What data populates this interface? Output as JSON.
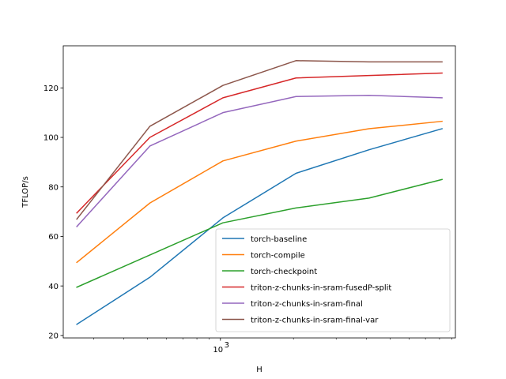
{
  "chart_data": {
    "type": "line",
    "title": "",
    "xlabel": "H",
    "ylabel": "TFLOP/s",
    "xscale": "log",
    "x": [
      256,
      512,
      1024,
      2048,
      4096,
      8192
    ],
    "xlim": [
      225,
      9300
    ],
    "ylim": [
      19,
      137
    ],
    "yticks": [
      20,
      40,
      60,
      80,
      100,
      120
    ],
    "xticks_major": [
      {
        "value": 1000,
        "label_base": "10",
        "label_exp": "3"
      }
    ],
    "grid": false,
    "legend_position": "lower right",
    "series": [
      {
        "name": "torch-baseline",
        "color": "#1f77b4",
        "values": [
          24.5,
          43.5,
          67.5,
          85.5,
          95.0,
          103.5
        ]
      },
      {
        "name": "torch-compile",
        "color": "#ff7f0e",
        "values": [
          49.5,
          73.5,
          90.5,
          98.5,
          103.5,
          106.5
        ]
      },
      {
        "name": "torch-checkpoint",
        "color": "#2ca02c",
        "values": [
          39.5,
          52.5,
          65.5,
          71.5,
          75.5,
          83.0
        ]
      },
      {
        "name": "triton-z-chunks-in-sram-fusedP-split",
        "color": "#d62728",
        "values": [
          69.5,
          100.0,
          116.0,
          124.0,
          125.0,
          126.0
        ]
      },
      {
        "name": "triton-z-chunks-in-sram-final",
        "color": "#9467bd",
        "values": [
          64.0,
          96.5,
          110.0,
          116.5,
          117.0,
          116.0
        ]
      },
      {
        "name": "triton-z-chunks-in-sram-final-var",
        "color": "#8c564b",
        "values": [
          67.0,
          104.5,
          121.0,
          131.0,
          130.5,
          130.5
        ]
      }
    ]
  }
}
